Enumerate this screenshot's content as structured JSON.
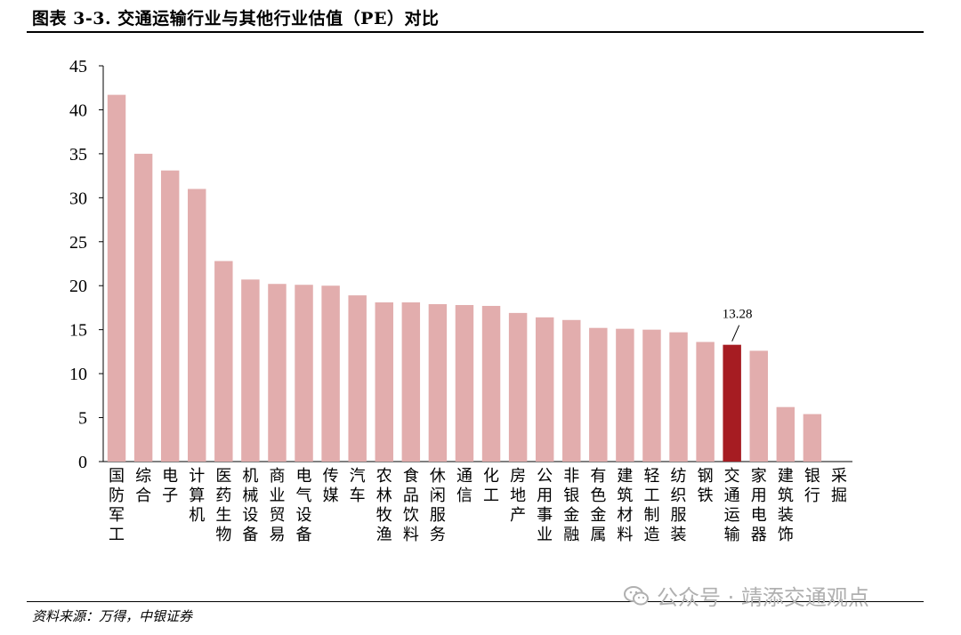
{
  "header": {
    "title": "图表 3-3. 交通运输行业与其他行业估值（PE）对比"
  },
  "footer": {
    "source": "资料来源：万得，中银证券",
    "watermark": "公众号 · 靖添交通观点"
  },
  "chart_data": {
    "type": "bar",
    "title": "",
    "xlabel": "",
    "ylabel": "",
    "ylim": [
      0,
      45
    ],
    "yticks": [
      0,
      5,
      10,
      15,
      20,
      25,
      30,
      35,
      40,
      45
    ],
    "grid": false,
    "categories": [
      "国防军工",
      "综合",
      "电子",
      "计算机",
      "医药生物",
      "机械设备",
      "商业贸易",
      "电气设备",
      "传媒",
      "汽车",
      "农林牧渔",
      "食品饮料",
      "休闲服务",
      "通信",
      "化工",
      "房地产",
      "公用事业",
      "非银金融",
      "有色金属",
      "建筑材料",
      "轻工制造",
      "纺织服装",
      "钢铁",
      "交通运输",
      "家用电器",
      "建筑装饰",
      "银行",
      "采掘"
    ],
    "values": [
      41.7,
      35.0,
      33.1,
      31.0,
      22.8,
      20.7,
      20.2,
      20.1,
      20.0,
      18.9,
      18.1,
      18.1,
      17.9,
      17.8,
      17.7,
      16.9,
      16.4,
      16.1,
      15.2,
      15.1,
      15.0,
      14.7,
      13.6,
      13.28,
      12.6,
      6.2,
      5.4,
      0
    ],
    "highlight_category": "交通运输",
    "highlight_label": "13.28",
    "colors": {
      "bar": "#e2adad",
      "highlight": "#a61c22",
      "axis": "#000000"
    }
  }
}
